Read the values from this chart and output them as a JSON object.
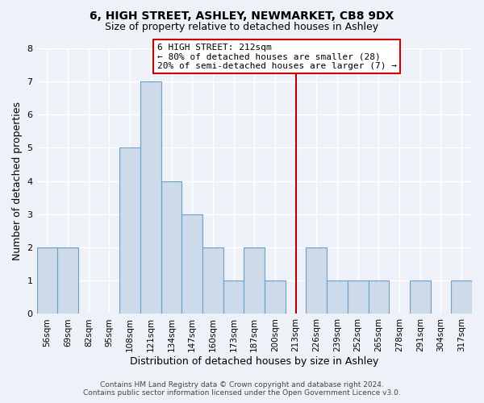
{
  "title": "6, HIGH STREET, ASHLEY, NEWMARKET, CB8 9DX",
  "subtitle": "Size of property relative to detached houses in Ashley",
  "xlabel": "Distribution of detached houses by size in Ashley",
  "ylabel": "Number of detached properties",
  "footer_line1": "Contains HM Land Registry data © Crown copyright and database right 2024.",
  "footer_line2": "Contains public sector information licensed under the Open Government Licence v3.0.",
  "bin_labels": [
    "56sqm",
    "69sqm",
    "82sqm",
    "95sqm",
    "108sqm",
    "121sqm",
    "134sqm",
    "147sqm",
    "160sqm",
    "173sqm",
    "187sqm",
    "200sqm",
    "213sqm",
    "226sqm",
    "239sqm",
    "252sqm",
    "265sqm",
    "278sqm",
    "291sqm",
    "304sqm",
    "317sqm"
  ],
  "bar_heights": [
    2,
    2,
    0,
    0,
    5,
    7,
    4,
    3,
    2,
    1,
    2,
    1,
    0,
    2,
    1,
    1,
    1,
    0,
    1,
    0,
    1
  ],
  "bar_color": "#cddaea",
  "bar_edge_color": "#6b9fc5",
  "ylim": [
    0,
    8
  ],
  "yticks": [
    0,
    1,
    2,
    3,
    4,
    5,
    6,
    7,
    8
  ],
  "vline_index": 12,
  "vline_color": "#aa0000",
  "annotation_title": "6 HIGH STREET: 212sqm",
  "annotation_line1": "← 80% of detached houses are smaller (28)",
  "annotation_line2": "20% of semi-detached houses are larger (7) →",
  "annotation_box_edge_color": "#cc0000",
  "background_color": "#eef2f8",
  "plot_bg_color": "#eef2f8",
  "grid_color": "#ffffff",
  "title_fontsize": 10,
  "subtitle_fontsize": 9,
  "ylabel_fontsize": 9,
  "xlabel_fontsize": 9,
  "tick_fontsize": 7.5,
  "footer_fontsize": 6.5,
  "annotation_fontsize": 8
}
